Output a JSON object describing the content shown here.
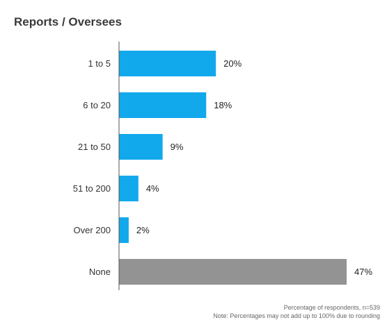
{
  "chart_data": {
    "type": "bar",
    "orientation": "horizontal",
    "title": "Reports / Oversees",
    "categories": [
      "1 to 5",
      "6 to 20",
      "21 to 50",
      "51 to 200",
      "Over 200",
      "None"
    ],
    "values": [
      20,
      18,
      9,
      4,
      2,
      47
    ],
    "value_labels": [
      "20%",
      "18%",
      "9%",
      "4%",
      "2%",
      "47%"
    ],
    "bar_colors": [
      "#12a9ec",
      "#12a9ec",
      "#12a9ec",
      "#12a9ec",
      "#12a9ec",
      "#939393"
    ],
    "xlim": [
      0,
      47
    ],
    "grid": false
  },
  "footnotes": {
    "line1": "Percentage of respondents, n=539",
    "line2": "Note: Percentages may not add up to 100% due to rounding"
  }
}
